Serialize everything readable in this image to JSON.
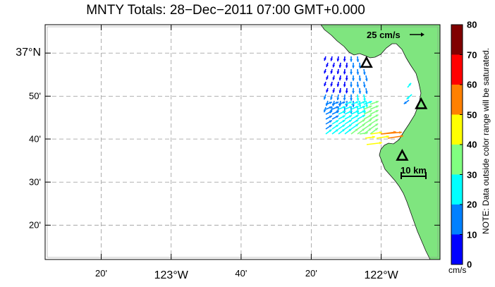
{
  "title": "MNTY Totals: 28−Dec−2011 07:00 GMT+0.000",
  "axes": {
    "x_ticks": [
      {
        "lon": -123.333,
        "label": "20'",
        "major": false
      },
      {
        "lon": -123.0,
        "label": "123°W",
        "major": true
      },
      {
        "lon": -122.667,
        "label": "40'",
        "major": false
      },
      {
        "lon": -122.333,
        "label": "20'",
        "major": false
      },
      {
        "lon": -122.0,
        "label": "122°W",
        "major": true
      }
    ],
    "y_ticks": [
      {
        "lat": 37.0,
        "label": "37°N",
        "major": true
      },
      {
        "lat": 36.833,
        "label": "50'",
        "major": false
      },
      {
        "lat": 36.667,
        "label": "40'",
        "major": false
      },
      {
        "lat": 36.5,
        "label": "30'",
        "major": false
      },
      {
        "lat": 36.333,
        "label": "20'",
        "major": false
      }
    ],
    "lon_range": [
      -123.6,
      -121.72
    ],
    "lat_range": [
      36.2,
      37.11
    ],
    "grid": true
  },
  "colorbar": {
    "unit": "cm/s",
    "ticks": [
      "0",
      "10",
      "20",
      "30",
      "40",
      "50",
      "60",
      "70",
      "80"
    ],
    "colors": [
      "#0000ff",
      "#0080ff",
      "#00ffff",
      "#80ff80",
      "#ffff00",
      "#ff8000",
      "#ff0000",
      "#800000"
    ],
    "note": "NOTE: Data outside color range will be saturated."
  },
  "reference_vector": {
    "label": "25 cm/s"
  },
  "scale_bar": {
    "label": "10 km"
  },
  "colors": {
    "land": "#7fe57f",
    "coast": "#000000"
  },
  "stations": [
    {
      "lon": -122.07,
      "lat": 36.96
    },
    {
      "lon": -121.81,
      "lat": 36.8
    },
    {
      "lon": -121.9,
      "lat": 36.6
    }
  ]
}
